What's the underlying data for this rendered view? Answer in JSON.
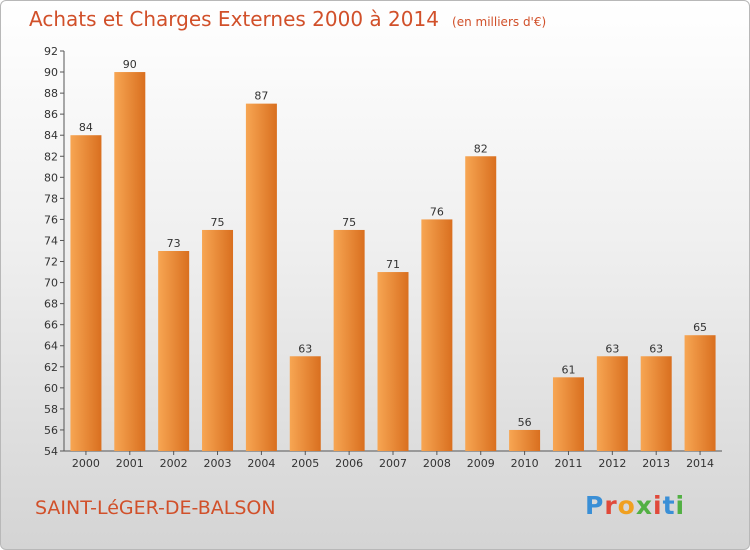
{
  "header": {
    "title": "Achats et Charges Externes 2000 à 2014",
    "unit": "(en milliers d'€)"
  },
  "footer": {
    "place": "SAINT-LéGER-DE-BALSON",
    "logo": "Proxiti",
    "logo_colors": [
      "#3a8fd6",
      "#e0493a",
      "#f0a020",
      "#52b043",
      "#e0493a",
      "#3a8fd6",
      "#52b043"
    ]
  },
  "colors": {
    "bar_light": "#f7a653",
    "bar_dark": "#d96f1f",
    "title": "#d1502a"
  },
  "chart_data": {
    "type": "bar",
    "categories": [
      "2000",
      "2001",
      "2002",
      "2003",
      "2004",
      "2005",
      "2006",
      "2007",
      "2008",
      "2009",
      "2010",
      "2011",
      "2012",
      "2013",
      "2014"
    ],
    "values": [
      84,
      90,
      73,
      75,
      87,
      63,
      75,
      71,
      76,
      82,
      56,
      61,
      63,
      63,
      65
    ],
    "ylim": [
      54,
      92
    ],
    "yticks": [
      54,
      56,
      58,
      60,
      62,
      64,
      66,
      68,
      70,
      72,
      74,
      76,
      78,
      80,
      82,
      84,
      86,
      88,
      90,
      92
    ],
    "grid": false
  }
}
